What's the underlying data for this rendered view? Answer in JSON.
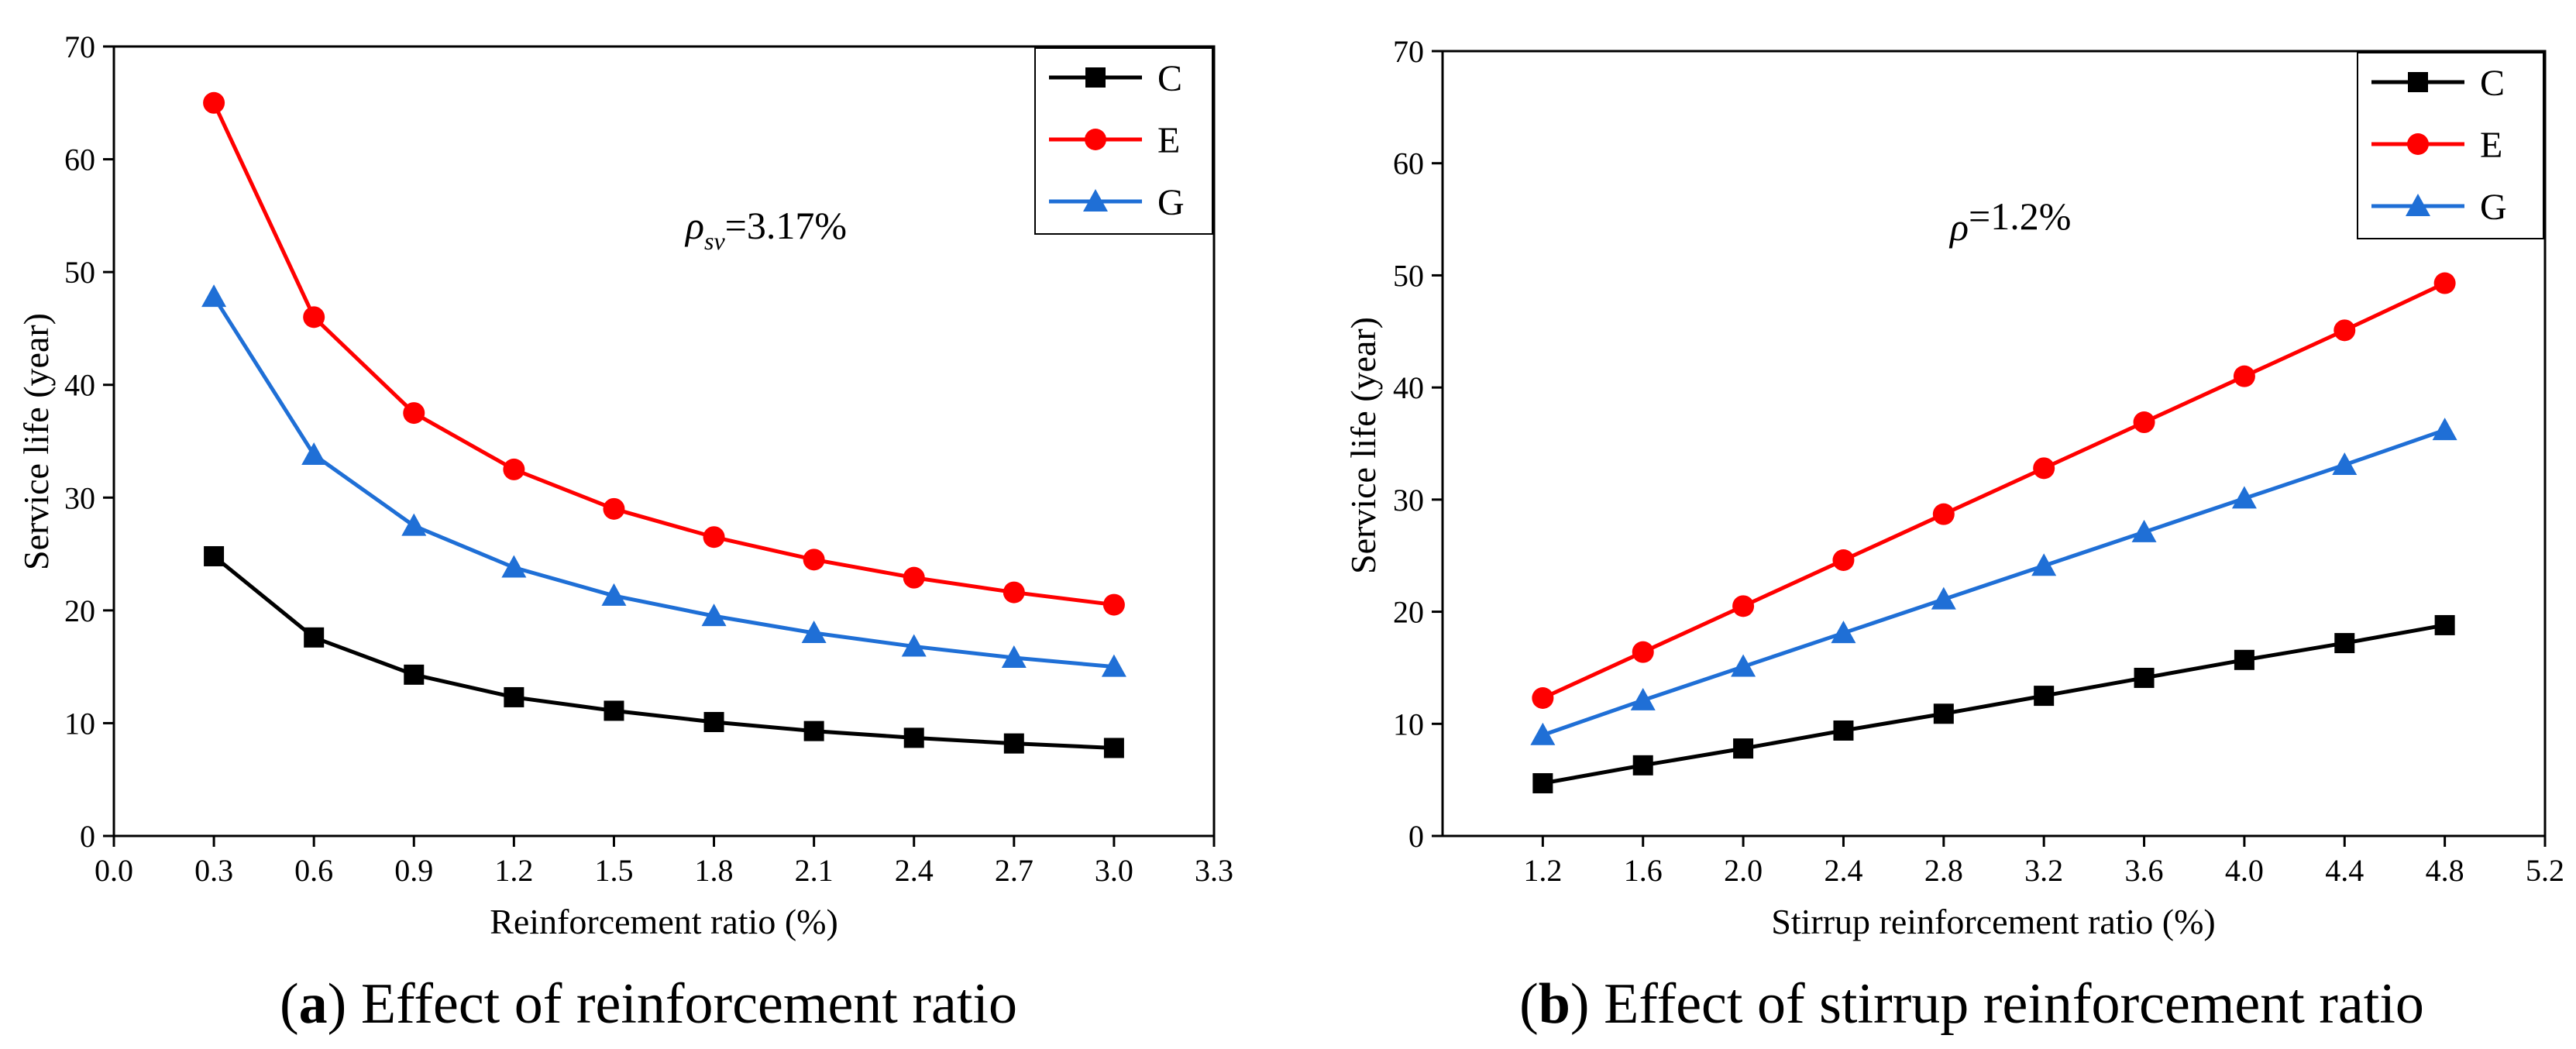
{
  "chart_data": [
    {
      "type": "line",
      "caption_letter": "a",
      "caption_text": "Effect of reinforcement ratio",
      "xlabel": "Reinforcement ratio (%)",
      "ylabel": "Service life (year)",
      "xlim": [
        0.0,
        3.3
      ],
      "ylim": [
        0,
        70
      ],
      "xticks": [
        "0.0",
        "0.3",
        "0.6",
        "0.9",
        "1.2",
        "1.5",
        "1.8",
        "2.1",
        "2.4",
        "2.7",
        "3.0",
        "3.3"
      ],
      "yticks": [
        "0",
        "10",
        "20",
        "30",
        "40",
        "50",
        "60",
        "70"
      ],
      "annotation_symbol": "ρ",
      "annotation_sub": "sv",
      "annotation_value": "=3.17%",
      "x": [
        0.3,
        0.6,
        0.9,
        1.2,
        1.5,
        1.8,
        2.1,
        2.4,
        2.7,
        3.0
      ],
      "series": [
        {
          "name": "C",
          "color": "#000000",
          "marker": "square",
          "values": [
            24.8,
            17.6,
            14.3,
            12.3,
            11.1,
            10.1,
            9.3,
            8.7,
            8.2,
            7.8
          ]
        },
        {
          "name": "E",
          "color": "#ff0000",
          "marker": "circle",
          "values": [
            65.0,
            46.0,
            37.5,
            32.5,
            29.0,
            26.5,
            24.5,
            22.9,
            21.6,
            20.5
          ]
        },
        {
          "name": "G",
          "color": "#1f6fd6",
          "marker": "triangle",
          "values": [
            47.8,
            33.8,
            27.5,
            23.8,
            21.3,
            19.5,
            18.0,
            16.8,
            15.8,
            15.0
          ]
        }
      ]
    },
    {
      "type": "line",
      "caption_letter": "b",
      "caption_text": "Effect of stirrup reinforcement ratio",
      "xlabel": "Stirrup reinforcement ratio (%)",
      "ylabel": "Service life (year)",
      "xlim": [
        0.8,
        5.2
      ],
      "ylim": [
        0,
        70
      ],
      "xticks": [
        "1.2",
        "1.6",
        "2.0",
        "2.4",
        "2.8",
        "3.2",
        "3.6",
        "4.0",
        "4.4",
        "4.8",
        "5.2"
      ],
      "yticks": [
        "0",
        "10",
        "20",
        "30",
        "40",
        "50",
        "60",
        "70"
      ],
      "annotation_symbol": "ρ",
      "annotation_sub": "",
      "annotation_value": "=1.2%",
      "x": [
        1.2,
        1.6,
        2.0,
        2.4,
        2.8,
        3.2,
        3.6,
        4.0,
        4.4,
        4.8
      ],
      "series": [
        {
          "name": "C",
          "color": "#000000",
          "marker": "square",
          "values": [
            4.7,
            6.3,
            7.8,
            9.4,
            10.9,
            12.5,
            14.1,
            15.7,
            17.2,
            18.8
          ]
        },
        {
          "name": "E",
          "color": "#ff0000",
          "marker": "circle",
          "values": [
            12.3,
            16.4,
            20.5,
            24.6,
            28.7,
            32.8,
            36.9,
            41.0,
            45.1,
            49.3
          ]
        },
        {
          "name": "G",
          "color": "#1f6fd6",
          "marker": "triangle",
          "values": [
            9.0,
            12.1,
            15.1,
            18.1,
            21.1,
            24.1,
            27.1,
            30.1,
            33.1,
            36.2
          ]
        }
      ]
    }
  ]
}
